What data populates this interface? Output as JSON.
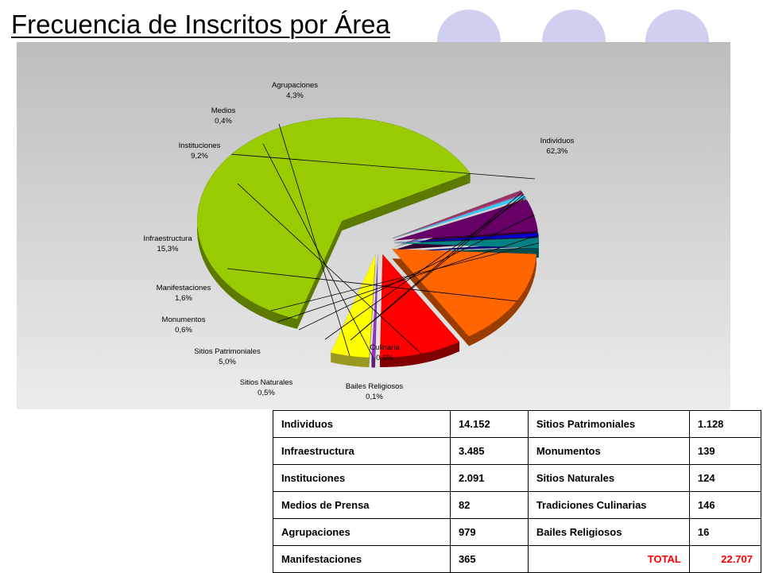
{
  "title": "Frecuencia de Inscritos por Área",
  "colors": {
    "decor_circles": "#cfcff0",
    "panel_top": "#bdbdbd",
    "panel_bottom": "#ececec",
    "total_text": "#ff0000"
  },
  "chart_data": {
    "type": "pie",
    "title": "",
    "style": "3d-exploded",
    "slices": [
      {
        "label": "Individuos",
        "percent_label": "62,3%",
        "value": 62.3,
        "color": "#99cc00",
        "side": "#5c7a00"
      },
      {
        "label": "Culinaria",
        "percent_label": "0,6%",
        "value": 0.6,
        "color": "#993366",
        "side": "#5c1f3d"
      },
      {
        "label": "Bailes Religiosos",
        "percent_label": "0,1%",
        "value": 0.1,
        "color": "#cc3399",
        "side": "#7a1f5c"
      },
      {
        "label": "Sitios Naturales",
        "percent_label": "0,5%",
        "value": 0.5,
        "color": "#33ccff",
        "side": "#1f7a99"
      },
      {
        "label": "Sitios Patrimoniales",
        "percent_label": "5,0%",
        "value": 5.0,
        "color": "#660066",
        "side": "#330033"
      },
      {
        "label": "Monumentos",
        "percent_label": "0,6%",
        "value": 0.6,
        "color": "#0000cc",
        "side": "#00007a"
      },
      {
        "label": "Manifestaciones",
        "percent_label": "1,6%",
        "value": 1.6,
        "color": "#008080",
        "side": "#004d4d"
      },
      {
        "label": "Infraestructura",
        "percent_label": "15,3%",
        "value": 15.3,
        "color": "#ff6600",
        "side": "#993d00"
      },
      {
        "label": "Instituciones",
        "percent_label": "9,2%",
        "value": 9.2,
        "color": "#ff0000",
        "side": "#800000"
      },
      {
        "label": "Medios",
        "percent_label": "0,4%",
        "value": 0.4,
        "color": "#9933cc",
        "side": "#5c1f7a"
      },
      {
        "label": "Agrupaciones",
        "percent_label": "4,3%",
        "value": 4.3,
        "color": "#ffff00",
        "side": "#99991f"
      }
    ]
  },
  "table": {
    "rows": [
      [
        "Individuos",
        "14.152",
        "Sitios Patrimoniales",
        "1.128"
      ],
      [
        "Infraestructura",
        "3.485",
        "Monumentos",
        "139"
      ],
      [
        "Instituciones",
        "2.091",
        "Sitios Naturales",
        "124"
      ],
      [
        "Medios de Prensa",
        "82",
        "Tradiciones Culinarias",
        "146"
      ],
      [
        "Agrupaciones",
        "979",
        "Bailes Religiosos",
        "16"
      ],
      [
        "Manifestaciones",
        "365",
        "TOTAL",
        "22.707"
      ]
    ]
  }
}
